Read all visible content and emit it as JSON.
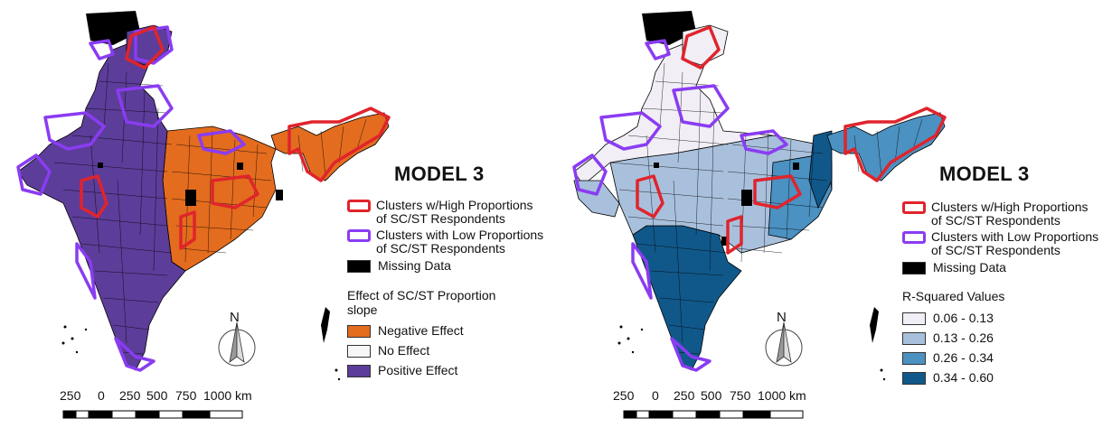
{
  "panels": [
    {
      "title": "MODEL 3",
      "legend": {
        "clusters_high": "Clusters w/High Proportions\nof SC/ST Respondents",
        "clusters_low": "Clusters with Low Proportions\nof SC/ST Respondents",
        "missing": "Missing Data",
        "fill_header": "Effect of SC/ST Proportion\nslope",
        "fill_items": [
          {
            "label": "Negative Effect",
            "color": "#e36c1e"
          },
          {
            "label": "No Effect",
            "color": "#f7f7f7"
          },
          {
            "label": "Positive Effect",
            "color": "#5c3d99"
          }
        ]
      },
      "north": "N",
      "scale_labels": [
        "250",
        "0",
        "250",
        "500",
        "750",
        "1000 km"
      ]
    },
    {
      "title": "MODEL 3",
      "legend": {
        "clusters_high": "Clusters w/High Proportions\nof SC/ST Respondents",
        "clusters_low": "Clusters with Low Proportions\nof SC/ST Respondents",
        "missing": "Missing Data",
        "fill_header": "R-Squared Values",
        "fill_items": [
          {
            "label": "0.06 - 0.13",
            "color": "#f1eef6"
          },
          {
            "label": "0.13 - 0.26",
            "color": "#a9c0dc"
          },
          {
            "label": "0.26 - 0.34",
            "color": "#4b91c2"
          },
          {
            "label": "0.34 - 0.60",
            "color": "#11588a"
          }
        ]
      },
      "north": "N",
      "scale_labels": [
        "250",
        "0",
        "250",
        "500",
        "750",
        "1000 km"
      ]
    }
  ],
  "colors": {
    "high_cluster": "#e0242c",
    "low_cluster": "#8a3cf2",
    "missing": "#000000"
  }
}
